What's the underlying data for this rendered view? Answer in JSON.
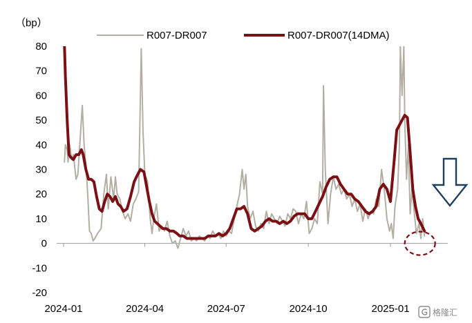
{
  "chart_data": {
    "type": "line",
    "unit_label": "（bp）",
    "xlabel": "",
    "ylabel": "",
    "ylim": [
      -20,
      80
    ],
    "yticks": [
      80,
      70,
      60,
      50,
      40,
      30,
      20,
      10,
      0,
      -10,
      -20
    ],
    "xlim": [
      "2024-01-01",
      "2025-02-28"
    ],
    "xticks": [
      {
        "date": "2024-01-01",
        "label": "2024-01"
      },
      {
        "date": "2024-04-01",
        "label": "2024-04"
      },
      {
        "date": "2024-07-01",
        "label": "2024-07"
      },
      {
        "date": "2024-10-01",
        "label": "2024-10"
      },
      {
        "date": "2025-01-01",
        "label": "2025-01"
      }
    ],
    "grid": false,
    "legend_position": "top",
    "series": [
      {
        "name": "R007-DR007",
        "color": "#b3aea3",
        "points": [
          [
            "2024-01-02",
            33
          ],
          [
            "2024-01-03",
            40
          ],
          [
            "2024-01-05",
            38
          ],
          [
            "2024-01-06",
            33
          ],
          [
            "2024-01-08",
            40
          ],
          [
            "2024-01-10",
            34
          ],
          [
            "2024-01-12",
            36
          ],
          [
            "2024-01-15",
            26
          ],
          [
            "2024-01-17",
            28
          ],
          [
            "2024-01-20",
            45
          ],
          [
            "2024-01-22",
            56
          ],
          [
            "2024-01-24",
            40
          ],
          [
            "2024-01-26",
            32
          ],
          [
            "2024-01-28",
            20
          ],
          [
            "2024-01-30",
            5
          ],
          [
            "2024-02-01",
            4
          ],
          [
            "2024-02-03",
            1
          ],
          [
            "2024-02-05",
            2
          ],
          [
            "2024-02-08",
            4
          ],
          [
            "2024-02-12",
            6
          ],
          [
            "2024-02-15",
            20
          ],
          [
            "2024-02-18",
            28
          ],
          [
            "2024-02-20",
            14
          ],
          [
            "2024-02-23",
            27
          ],
          [
            "2024-02-26",
            18
          ],
          [
            "2024-02-28",
            27
          ],
          [
            "2024-03-01",
            20
          ],
          [
            "2024-03-04",
            18
          ],
          [
            "2024-03-07",
            13
          ],
          [
            "2024-03-10",
            10
          ],
          [
            "2024-03-13",
            12
          ],
          [
            "2024-03-16",
            9
          ],
          [
            "2024-03-19",
            16
          ],
          [
            "2024-03-22",
            18
          ],
          [
            "2024-03-25",
            21
          ],
          [
            "2024-03-28",
            79
          ],
          [
            "2024-03-30",
            45
          ],
          [
            "2024-04-01",
            28
          ],
          [
            "2024-04-04",
            25
          ],
          [
            "2024-04-07",
            10
          ],
          [
            "2024-04-09",
            4
          ],
          [
            "2024-04-11",
            10
          ],
          [
            "2024-04-14",
            16
          ],
          [
            "2024-04-17",
            5
          ],
          [
            "2024-04-20",
            7
          ],
          [
            "2024-04-23",
            5
          ],
          [
            "2024-04-26",
            9
          ],
          [
            "2024-04-29",
            3
          ],
          [
            "2024-05-02",
            0
          ],
          [
            "2024-05-05",
            1
          ],
          [
            "2024-05-08",
            -2
          ],
          [
            "2024-05-11",
            2
          ],
          [
            "2024-05-14",
            6
          ],
          [
            "2024-05-17",
            3
          ],
          [
            "2024-05-20",
            5
          ],
          [
            "2024-05-23",
            1
          ],
          [
            "2024-05-26",
            2
          ],
          [
            "2024-05-29",
            1
          ],
          [
            "2024-06-01",
            3
          ],
          [
            "2024-06-04",
            2
          ],
          [
            "2024-06-07",
            1
          ],
          [
            "2024-06-10",
            3
          ],
          [
            "2024-06-13",
            2
          ],
          [
            "2024-06-16",
            5
          ],
          [
            "2024-06-19",
            3
          ],
          [
            "2024-06-22",
            4
          ],
          [
            "2024-06-25",
            2
          ],
          [
            "2024-06-28",
            5
          ],
          [
            "2024-07-01",
            3
          ],
          [
            "2024-07-04",
            5
          ],
          [
            "2024-07-07",
            4
          ],
          [
            "2024-07-10",
            10
          ],
          [
            "2024-07-13",
            15
          ],
          [
            "2024-07-16",
            20
          ],
          [
            "2024-07-19",
            30
          ],
          [
            "2024-07-21",
            22
          ],
          [
            "2024-07-23",
            28
          ],
          [
            "2024-07-25",
            15
          ],
          [
            "2024-07-28",
            10
          ],
          [
            "2024-07-31",
            13
          ],
          [
            "2024-08-03",
            7
          ],
          [
            "2024-08-06",
            5
          ],
          [
            "2024-08-09",
            8
          ],
          [
            "2024-08-12",
            6
          ],
          [
            "2024-08-15",
            13
          ],
          [
            "2024-08-18",
            8
          ],
          [
            "2024-08-21",
            12
          ],
          [
            "2024-08-24",
            10
          ],
          [
            "2024-08-27",
            8
          ],
          [
            "2024-08-30",
            11
          ],
          [
            "2024-09-02",
            9
          ],
          [
            "2024-09-05",
            7
          ],
          [
            "2024-09-08",
            12
          ],
          [
            "2024-09-11",
            10
          ],
          [
            "2024-09-14",
            14
          ],
          [
            "2024-09-17",
            13
          ],
          [
            "2024-09-20",
            8
          ],
          [
            "2024-09-23",
            12
          ],
          [
            "2024-09-26",
            10
          ],
          [
            "2024-09-29",
            17
          ],
          [
            "2024-10-02",
            4
          ],
          [
            "2024-10-05",
            6
          ],
          [
            "2024-10-08",
            10
          ],
          [
            "2024-10-11",
            8
          ],
          [
            "2024-10-14",
            25
          ],
          [
            "2024-10-17",
            20
          ],
          [
            "2024-10-18",
            64
          ],
          [
            "2024-10-20",
            30
          ],
          [
            "2024-10-23",
            8
          ],
          [
            "2024-10-26",
            20
          ],
          [
            "2024-10-29",
            27
          ],
          [
            "2024-11-01",
            22
          ],
          [
            "2024-11-04",
            24
          ],
          [
            "2024-11-07",
            20
          ],
          [
            "2024-11-10",
            22
          ],
          [
            "2024-11-13",
            18
          ],
          [
            "2024-11-16",
            20
          ],
          [
            "2024-11-19",
            15
          ],
          [
            "2024-11-22",
            18
          ],
          [
            "2024-11-25",
            13
          ],
          [
            "2024-11-28",
            16
          ],
          [
            "2024-12-01",
            9
          ],
          [
            "2024-12-04",
            14
          ],
          [
            "2024-12-07",
            10
          ],
          [
            "2024-12-10",
            13
          ],
          [
            "2024-12-13",
            12
          ],
          [
            "2024-12-16",
            18
          ],
          [
            "2024-12-19",
            15
          ],
          [
            "2024-12-22",
            30
          ],
          [
            "2024-12-25",
            22
          ],
          [
            "2024-12-28",
            10
          ],
          [
            "2024-12-31",
            5
          ],
          [
            "2025-01-02",
            8
          ],
          [
            "2025-01-04",
            2
          ],
          [
            "2025-01-06",
            15
          ],
          [
            "2025-01-09",
            22
          ],
          [
            "2025-01-11",
            40
          ],
          [
            "2025-01-12",
            80
          ],
          [
            "2025-01-14",
            60
          ],
          [
            "2025-01-16",
            80
          ],
          [
            "2025-01-17",
            50
          ],
          [
            "2025-01-19",
            26
          ],
          [
            "2025-01-21",
            40
          ],
          [
            "2025-01-23",
            12
          ],
          [
            "2025-01-25",
            22
          ],
          [
            "2025-01-27",
            15
          ],
          [
            "2025-01-30",
            4
          ],
          [
            "2025-02-02",
            8
          ],
          [
            "2025-02-04",
            2
          ],
          [
            "2025-02-06",
            10
          ],
          [
            "2025-02-08",
            3
          ]
        ]
      },
      {
        "name": "R007-DR007(14DMA)",
        "color": "#7a0f14",
        "points": [
          [
            "2024-01-02",
            80
          ],
          [
            "2024-01-03",
            68
          ],
          [
            "2024-01-05",
            50
          ],
          [
            "2024-01-07",
            36
          ],
          [
            "2024-01-09",
            35
          ],
          [
            "2024-01-12",
            34
          ],
          [
            "2024-01-15",
            36
          ],
          [
            "2024-01-18",
            36
          ],
          [
            "2024-01-21",
            38
          ],
          [
            "2024-01-23",
            36
          ],
          [
            "2024-01-26",
            30
          ],
          [
            "2024-01-29",
            26
          ],
          [
            "2024-02-01",
            26
          ],
          [
            "2024-02-04",
            25
          ],
          [
            "2024-02-07",
            19
          ],
          [
            "2024-02-10",
            14
          ],
          [
            "2024-02-13",
            13
          ],
          [
            "2024-02-16",
            17
          ],
          [
            "2024-02-19",
            20
          ],
          [
            "2024-02-22",
            19
          ],
          [
            "2024-02-25",
            17
          ],
          [
            "2024-02-28",
            19
          ],
          [
            "2024-03-02",
            16
          ],
          [
            "2024-03-05",
            15
          ],
          [
            "2024-03-08",
            13
          ],
          [
            "2024-03-12",
            14
          ],
          [
            "2024-03-16",
            19
          ],
          [
            "2024-03-20",
            25
          ],
          [
            "2024-03-24",
            28
          ],
          [
            "2024-03-27",
            30
          ],
          [
            "2024-03-31",
            29
          ],
          [
            "2024-04-03",
            23
          ],
          [
            "2024-04-06",
            17
          ],
          [
            "2024-04-09",
            12
          ],
          [
            "2024-04-12",
            9
          ],
          [
            "2024-04-15",
            8
          ],
          [
            "2024-04-18",
            7
          ],
          [
            "2024-04-21",
            6
          ],
          [
            "2024-04-25",
            6
          ],
          [
            "2024-04-29",
            5
          ],
          [
            "2024-05-03",
            5
          ],
          [
            "2024-05-07",
            4
          ],
          [
            "2024-05-10",
            3
          ],
          [
            "2024-05-14",
            3
          ],
          [
            "2024-05-18",
            2
          ],
          [
            "2024-05-22",
            2
          ],
          [
            "2024-05-26",
            2
          ],
          [
            "2024-05-30",
            2
          ],
          [
            "2024-06-03",
            2
          ],
          [
            "2024-06-07",
            2
          ],
          [
            "2024-06-11",
            3
          ],
          [
            "2024-06-15",
            3
          ],
          [
            "2024-06-19",
            3
          ],
          [
            "2024-06-23",
            4
          ],
          [
            "2024-06-27",
            3
          ],
          [
            "2024-07-01",
            4
          ],
          [
            "2024-07-05",
            6
          ],
          [
            "2024-07-09",
            10
          ],
          [
            "2024-07-13",
            14
          ],
          [
            "2024-07-17",
            14
          ],
          [
            "2024-07-21",
            15
          ],
          [
            "2024-07-25",
            12
          ],
          [
            "2024-07-29",
            6
          ],
          [
            "2024-08-02",
            5
          ],
          [
            "2024-08-06",
            6
          ],
          [
            "2024-08-10",
            7
          ],
          [
            "2024-08-14",
            9
          ],
          [
            "2024-08-18",
            10
          ],
          [
            "2024-08-22",
            9
          ],
          [
            "2024-08-26",
            9
          ],
          [
            "2024-08-30",
            8
          ],
          [
            "2024-09-03",
            9
          ],
          [
            "2024-09-07",
            8
          ],
          [
            "2024-09-11",
            9
          ],
          [
            "2024-09-15",
            11
          ],
          [
            "2024-09-19",
            12
          ],
          [
            "2024-09-23",
            12
          ],
          [
            "2024-09-27",
            12
          ],
          [
            "2024-10-01",
            10
          ],
          [
            "2024-10-05",
            10
          ],
          [
            "2024-10-09",
            13
          ],
          [
            "2024-10-13",
            16
          ],
          [
            "2024-10-17",
            19
          ],
          [
            "2024-10-21",
            23
          ],
          [
            "2024-10-25",
            26
          ],
          [
            "2024-10-29",
            27
          ],
          [
            "2024-11-02",
            27
          ],
          [
            "2024-11-06",
            24
          ],
          [
            "2024-11-10",
            22
          ],
          [
            "2024-11-14",
            20
          ],
          [
            "2024-11-18",
            20
          ],
          [
            "2024-11-22",
            18
          ],
          [
            "2024-11-26",
            17
          ],
          [
            "2024-11-30",
            15
          ],
          [
            "2024-12-04",
            13
          ],
          [
            "2024-12-08",
            12
          ],
          [
            "2024-12-12",
            13
          ],
          [
            "2024-12-16",
            15
          ],
          [
            "2024-12-20",
            22
          ],
          [
            "2024-12-24",
            24
          ],
          [
            "2024-12-28",
            22
          ],
          [
            "2025-01-01",
            17
          ],
          [
            "2025-01-05",
            33
          ],
          [
            "2025-01-08",
            46
          ],
          [
            "2025-01-11",
            48
          ],
          [
            "2025-01-14",
            50
          ],
          [
            "2025-01-17",
            52
          ],
          [
            "2025-01-20",
            51
          ],
          [
            "2025-01-23",
            37
          ],
          [
            "2025-01-26",
            22
          ],
          [
            "2025-01-29",
            15
          ],
          [
            "2025-02-01",
            10
          ],
          [
            "2025-02-04",
            8
          ],
          [
            "2025-02-08",
            5
          ]
        ]
      }
    ],
    "annotations": [
      {
        "type": "dashed-ellipse",
        "color": "#7a0f14",
        "x": "2025-02-03",
        "y": 0
      },
      {
        "type": "down-arrow",
        "color": "#1f3d5c"
      }
    ]
  },
  "watermark": {
    "text": "格隆汇",
    "icon": "logo-g-icon"
  }
}
